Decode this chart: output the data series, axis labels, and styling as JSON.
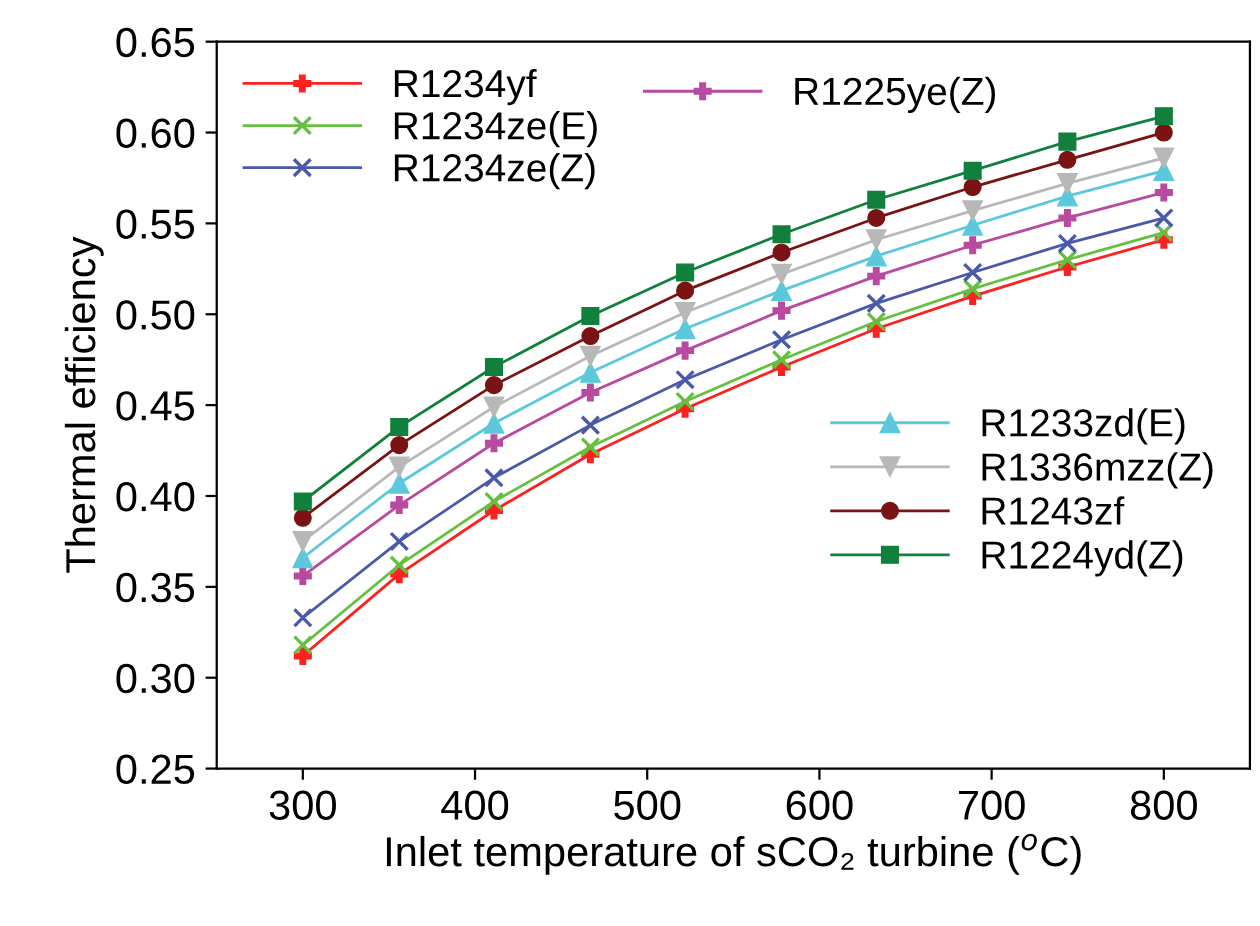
{
  "chart_data": {
    "type": "line",
    "xlabel": "Inlet temperature of sCO₂ turbine ($^{o}$C)",
    "ylabel": "Thermal efficiency",
    "x": [
      300,
      356,
      411,
      467,
      522,
      578,
      633,
      689,
      744,
      800
    ],
    "xlim": [
      250,
      850
    ],
    "xticks": [
      300,
      400,
      500,
      600,
      700,
      800
    ],
    "ylim": [
      0.25,
      0.65
    ],
    "yticks": [
      {
        "value": 0.25,
        "label": "0.25"
      },
      {
        "value": 0.3,
        "label": "0.30"
      },
      {
        "value": 0.35,
        "label": "0.35"
      },
      {
        "value": 0.4,
        "label": "0.40"
      },
      {
        "value": 0.45,
        "label": "0.45"
      },
      {
        "value": 0.5,
        "label": "0.50"
      },
      {
        "value": 0.55,
        "label": "0.55"
      },
      {
        "value": 0.6,
        "label": "0.60"
      },
      {
        "value": 0.65,
        "label": "0.65"
      }
    ],
    "grid": false,
    "legend": "top left",
    "line_style": "solid",
    "series": [
      {
        "name": "R1234yf",
        "color": "#ff2020",
        "marker": "plus",
        "values": [
          0.312,
          0.357,
          0.392,
          0.423,
          0.448,
          0.471,
          0.492,
          0.51,
          0.526,
          0.541
        ]
      },
      {
        "name": "R1234ze(E)",
        "color": "#66c040",
        "marker": "x",
        "values": [
          0.318,
          0.362,
          0.397,
          0.427,
          0.452,
          0.475,
          0.496,
          0.514,
          0.53,
          0.545
        ]
      },
      {
        "name": "R1234ze(Z)",
        "color": "#4a5aa8",
        "marker": "x",
        "values": [
          0.333,
          0.375,
          0.41,
          0.439,
          0.464,
          0.486,
          0.506,
          0.523,
          0.539,
          0.553
        ]
      },
      {
        "name": "R1225ye(Z)",
        "color": "#b84aa0",
        "marker": "plus",
        "values": [
          0.356,
          0.395,
          0.429,
          0.457,
          0.48,
          0.502,
          0.521,
          0.538,
          0.553,
          0.567
        ]
      },
      {
        "name": "R1233zd(E)",
        "color": "#5cc8dc",
        "marker": "triangle",
        "values": [
          0.366,
          0.407,
          0.44,
          0.468,
          0.492,
          0.513,
          0.532,
          0.549,
          0.565,
          0.579
        ]
      },
      {
        "name": "R1336mzz(Z)",
        "color": "#b8b8b8",
        "marker": "triangle_down",
        "values": [
          0.375,
          0.416,
          0.449,
          0.477,
          0.501,
          0.522,
          0.541,
          0.557,
          0.572,
          0.586
        ]
      },
      {
        "name": "R1243zf",
        "color": "#7a1414",
        "marker": "circle",
        "values": [
          0.388,
          0.428,
          0.461,
          0.488,
          0.513,
          0.534,
          0.553,
          0.57,
          0.585,
          0.6
        ]
      },
      {
        "name": "R1224yd(Z)",
        "color": "#10803c",
        "marker": "square",
        "values": [
          0.397,
          0.438,
          0.471,
          0.499,
          0.523,
          0.544,
          0.563,
          0.579,
          0.595,
          0.609
        ]
      }
    ]
  }
}
